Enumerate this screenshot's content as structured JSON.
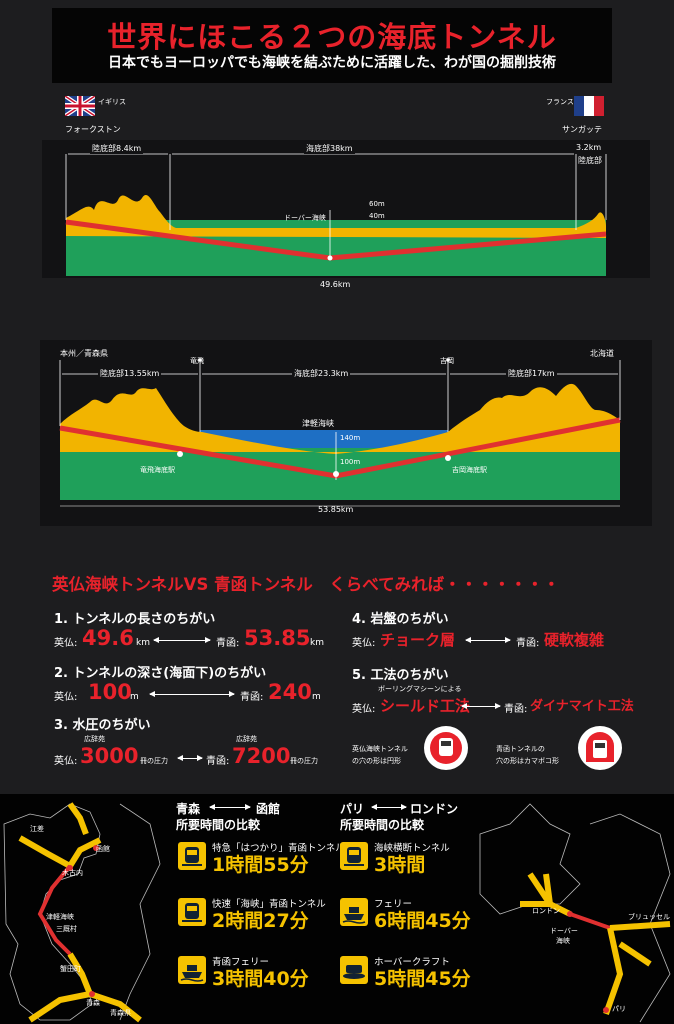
{
  "header": {
    "title": "世界にほこる２つの海底トンネル",
    "subtitle": "日本でもヨーロッパでも海峡を結ぶために活躍した、わが国の掘削技術"
  },
  "top_diagram": {
    "left_country": "イギリス",
    "left_place": "フォークストン",
    "right_country": "フランス",
    "right_place": "サンガッテ",
    "left_land": "陸底部8.4km",
    "sea_section": "海底部38km",
    "right_land_km": "3.2km",
    "right_land": "陸底部",
    "strait": "ドーバー海峡",
    "depth_sea": "60m",
    "depth_tunnel": "40m",
    "total": "49.6km"
  },
  "bottom_diagram": {
    "left_place": "本州／青森県",
    "right_place": "北海道",
    "tappi": "竜飛",
    "yoshioka": "吉岡",
    "left_land": "陸底部13.55km",
    "sea_section": "海底部23.3km",
    "right_land": "陸底部17km",
    "strait": "津軽海峡",
    "depth_sea": "140m",
    "depth_tunnel": "100m",
    "left_station": "竜飛海底駅",
    "right_station": "吉岡海底駅",
    "total": "53.85km"
  },
  "comparison": {
    "title": "英仏海峡トンネルVS 青函トンネル　くらべてみれば・・・・・・・",
    "items": [
      {
        "heading": "1. トンネルの長さのちがい",
        "uk_label": "英仏:",
        "uk_value": "49.6",
        "uk_unit": "km",
        "jp_label": "青函:",
        "jp_value": "53.85",
        "jp_unit": "km"
      },
      {
        "heading": "2. トンネルの深さ(海面下)のちがい",
        "uk_label": "英仏:",
        "uk_value": "100",
        "uk_unit": "m",
        "jp_label": "青函:",
        "jp_value": "240",
        "jp_unit": "m"
      },
      {
        "heading": "3. 水圧のちがい",
        "uk_label": "英仏:",
        "uk_note": "広辞苑",
        "uk_value": "3000",
        "uk_unit": "冊の圧力",
        "jp_label": "青函:",
        "jp_note": "広辞苑",
        "jp_value": "7200",
        "jp_unit": "冊の圧力"
      },
      {
        "heading": "4. 岩盤のちがい",
        "uk_label": "英仏:",
        "uk_value": "チョーク層",
        "jp_label": "青函:",
        "jp_value": "硬軟複雑"
      },
      {
        "heading": "5. 工法のちがい",
        "uk_note": "ボーリングマシーンによる",
        "uk_label": "英仏:",
        "uk_value": "シールド工法",
        "jp_label": "青函:",
        "jp_value": "ダイナマイト工法"
      }
    ],
    "shape_uk_line1": "英仏海峡トンネル",
    "shape_uk_line2": "の穴の形は円形",
    "shape_jp_line1": "青函トンネルの",
    "shape_jp_line2": "穴の形はカマボコ形"
  },
  "travel": {
    "jp_route_from": "青森",
    "jp_route_to": "函館",
    "jp_heading": "所要時間の比較",
    "jp_options": [
      {
        "name": "特急「はつかり」青函トンネル",
        "time": "1時間55分",
        "icon": "train-icon"
      },
      {
        "name": "快速「海峡」青函トンネル",
        "time": "2時間27分",
        "icon": "train-icon"
      },
      {
        "name": "青函フェリー",
        "time": "3時間40分",
        "icon": "ferry-icon"
      }
    ],
    "eu_route_from": "パリ",
    "eu_route_to": "ロンドン",
    "eu_heading": "所要時間の比較",
    "eu_options": [
      {
        "name": "海峡横断トンネル",
        "time": "3時間",
        "icon": "train-icon"
      },
      {
        "name": "フェリー",
        "time": "6時間45分",
        "icon": "ferry-icon"
      },
      {
        "name": "ホーバークラフト",
        "time": "5時間45分",
        "icon": "hovercraft-icon"
      }
    ]
  },
  "maps": {
    "jp_labels": [
      "江差",
      "函館",
      "木古内",
      "津軽海峡",
      "三厩村",
      "蟹田町",
      "青森",
      "青森県"
    ],
    "eu_labels": [
      "ロンドン",
      "ドーバー",
      "海峡",
      "ブリュッセル",
      "パリ"
    ]
  },
  "colors": {
    "accent_red": "#e8222b",
    "rock_yellow": "#f2b400",
    "sea_blue": "#1e6fc4",
    "ground_green": "#1fa05a",
    "time_yellow": "#f5c200"
  }
}
